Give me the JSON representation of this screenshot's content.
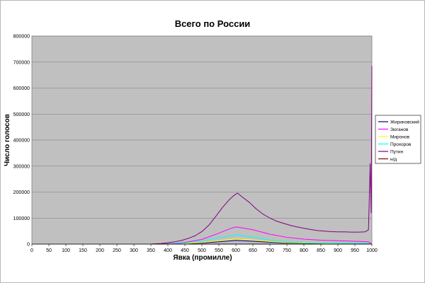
{
  "chart_data": {
    "type": "line",
    "title": "Всего по России",
    "xlabel": "Явка (промилле)",
    "ylabel": "Число голосов",
    "xlim": [
      0,
      1000
    ],
    "ylim": [
      0,
      800000
    ],
    "x_ticks": [
      "0",
      "50",
      "100",
      "150",
      "200",
      "250",
      "300",
      "350",
      "400",
      "450",
      "500",
      "550",
      "600",
      "650",
      "700",
      "750",
      "800",
      "850",
      "900",
      "950",
      "1000"
    ],
    "y_ticks": [
      "0",
      "100000",
      "200000",
      "300000",
      "400000",
      "500000",
      "600000",
      "700000",
      "800000"
    ],
    "grid": "horizontal",
    "legend_position": "right",
    "background_color": "#c0c0c0",
    "series": [
      {
        "name": "Жириновский",
        "color": "#000080",
        "points": [
          [
            350,
            0
          ],
          [
            400,
            300
          ],
          [
            450,
            1500
          ],
          [
            500,
            4000
          ],
          [
            550,
            9000
          ],
          [
            600,
            14000
          ],
          [
            650,
            11000
          ],
          [
            700,
            7000
          ],
          [
            750,
            4500
          ],
          [
            800,
            3000
          ],
          [
            850,
            2000
          ],
          [
            900,
            1500
          ],
          [
            950,
            1200
          ],
          [
            990,
            1000
          ],
          [
            1000,
            0
          ]
        ]
      },
      {
        "name": "Зюганов",
        "color": "#ff00ff",
        "points": [
          [
            350,
            0
          ],
          [
            400,
            1000
          ],
          [
            450,
            6000
          ],
          [
            500,
            18000
          ],
          [
            550,
            42000
          ],
          [
            580,
            58000
          ],
          [
            600,
            66000
          ],
          [
            620,
            62000
          ],
          [
            650,
            55000
          ],
          [
            700,
            38000
          ],
          [
            750,
            26000
          ],
          [
            800,
            19000
          ],
          [
            850,
            15000
          ],
          [
            900,
            13000
          ],
          [
            950,
            11000
          ],
          [
            990,
            9000
          ],
          [
            1000,
            0
          ]
        ]
      },
      {
        "name": "Миронов",
        "color": "#ffff00",
        "points": [
          [
            350,
            0
          ],
          [
            400,
            400
          ],
          [
            450,
            2000
          ],
          [
            500,
            6000
          ],
          [
            550,
            13000
          ],
          [
            600,
            20000
          ],
          [
            650,
            16000
          ],
          [
            700,
            10000
          ],
          [
            750,
            6000
          ],
          [
            800,
            4000
          ],
          [
            850,
            3000
          ],
          [
            900,
            2200
          ],
          [
            950,
            1800
          ],
          [
            990,
            1500
          ],
          [
            1000,
            0
          ]
        ]
      },
      {
        "name": "Прохоров",
        "color": "#00ffff",
        "points": [
          [
            350,
            0
          ],
          [
            400,
            600
          ],
          [
            450,
            4000
          ],
          [
            500,
            12000
          ],
          [
            550,
            25000
          ],
          [
            600,
            36000
          ],
          [
            650,
            27000
          ],
          [
            700,
            16000
          ],
          [
            750,
            9000
          ],
          [
            800,
            6000
          ],
          [
            850,
            4500
          ],
          [
            900,
            3500
          ],
          [
            950,
            2800
          ],
          [
            990,
            2000
          ],
          [
            1000,
            0
          ]
        ]
      },
      {
        "name": "Путин",
        "color": "#800080",
        "points": [
          [
            350,
            0
          ],
          [
            380,
            2000
          ],
          [
            400,
            5000
          ],
          [
            420,
            9000
          ],
          [
            440,
            14000
          ],
          [
            460,
            22000
          ],
          [
            480,
            32000
          ],
          [
            500,
            48000
          ],
          [
            520,
            72000
          ],
          [
            540,
            105000
          ],
          [
            560,
            140000
          ],
          [
            580,
            170000
          ],
          [
            595,
            188000
          ],
          [
            605,
            196000
          ],
          [
            620,
            180000
          ],
          [
            640,
            160000
          ],
          [
            660,
            135000
          ],
          [
            680,
            115000
          ],
          [
            700,
            100000
          ],
          [
            720,
            88000
          ],
          [
            740,
            80000
          ],
          [
            760,
            72000
          ],
          [
            780,
            66000
          ],
          [
            800,
            61000
          ],
          [
            820,
            56000
          ],
          [
            840,
            52000
          ],
          [
            860,
            50000
          ],
          [
            880,
            48000
          ],
          [
            900,
            47000
          ],
          [
            920,
            47000
          ],
          [
            940,
            46000
          ],
          [
            960,
            46000
          ],
          [
            980,
            47000
          ],
          [
            990,
            55000
          ],
          [
            995,
            310000
          ],
          [
            998,
            120000
          ],
          [
            1000,
            685000
          ]
        ]
      },
      {
        "name": "н/д",
        "color": "#800000",
        "points": [
          [
            350,
            0
          ],
          [
            500,
            0
          ],
          [
            1000,
            0
          ]
        ]
      }
    ]
  }
}
